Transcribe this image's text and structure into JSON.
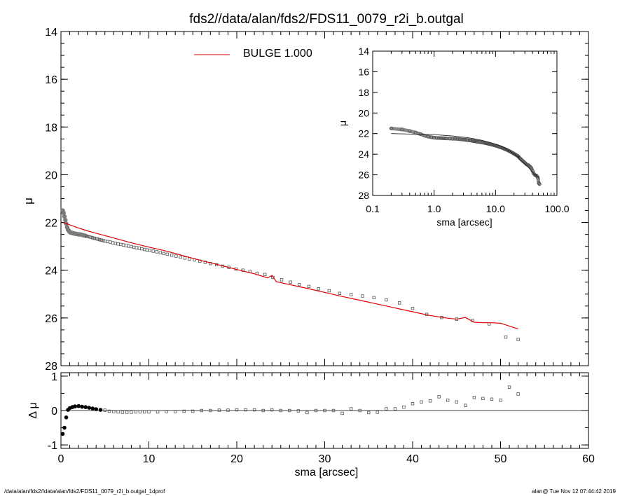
{
  "title": "fds2//data/alan/fds2/FDS11_0079_r2i_b.outgal",
  "footer_left": "/data/alan/fds2//data/alan/fds2/FDS11_0079_r2i_b.outgal_1dprof",
  "footer_right": "alan@  Tue Nov 12 07:44:42 2019",
  "colors": {
    "model": "#dd0000",
    "data": "#7a7a7a",
    "residual": "#000000"
  },
  "chart_data": [
    {
      "id": "main",
      "type": "scatter",
      "ylabel": "μ",
      "xlim": [
        0,
        60
      ],
      "ylim": [
        28,
        14
      ],
      "y_inverted": true,
      "xticks": [
        0,
        10,
        20,
        30,
        40,
        50,
        60
      ],
      "yticks": [
        14,
        16,
        18,
        20,
        22,
        24,
        26,
        28
      ],
      "legend": {
        "label": "BULGE  1.000",
        "placement": "top-center"
      },
      "series": [
        {
          "kind": "data",
          "x": [
            0.2,
            0.3,
            0.4,
            0.5,
            0.6,
            0.7,
            0.8,
            0.9,
            1.0,
            1.1,
            1.2,
            1.3,
            1.4,
            1.5,
            1.6,
            1.8,
            2.0,
            2.2,
            2.4,
            2.6,
            2.8,
            3.0,
            3.2,
            3.4,
            3.6,
            3.8,
            4.0,
            4.2,
            4.4,
            4.6,
            4.8,
            5.0,
            5.3,
            5.6,
            5.9,
            6.2,
            6.5,
            6.8,
            7.1,
            7.4,
            7.7,
            8.0,
            8.3,
            8.6,
            8.9,
            9.2,
            9.5,
            9.8,
            10.1,
            10.5,
            10.9,
            11.3,
            11.7,
            12.1,
            12.6,
            13.1,
            13.6,
            14.1,
            14.6,
            15.2,
            15.8,
            16.4,
            17.0,
            17.7,
            18.4,
            19.1,
            19.9,
            20.7,
            21.5,
            22.3,
            23.2,
            24.1,
            25.1,
            26.1,
            27.1,
            28.2,
            29.3,
            30.5,
            31.7,
            33.0,
            34.3,
            35.6,
            37.0,
            38.5,
            40.0,
            41.6,
            43.3,
            45.0,
            46.8,
            48.7,
            50.6,
            52.0
          ],
          "y": [
            21.5,
            21.6,
            21.75,
            21.9,
            22.05,
            22.2,
            22.3,
            22.35,
            22.4,
            22.42,
            22.43,
            22.44,
            22.45,
            22.46,
            22.47,
            22.48,
            22.5,
            22.5,
            22.52,
            22.54,
            22.56,
            22.58,
            22.6,
            22.62,
            22.64,
            22.66,
            22.68,
            22.7,
            22.72,
            22.74,
            22.76,
            22.78,
            22.8,
            22.82,
            22.85,
            22.87,
            22.9,
            22.92,
            22.94,
            22.97,
            22.99,
            23.01,
            23.04,
            23.06,
            23.08,
            23.1,
            23.13,
            23.15,
            23.17,
            23.2,
            23.23,
            23.27,
            23.3,
            23.33,
            23.37,
            23.41,
            23.45,
            23.49,
            23.53,
            23.57,
            23.62,
            23.67,
            23.72,
            23.77,
            23.83,
            23.88,
            23.95,
            24.0,
            24.06,
            24.13,
            24.18,
            24.3,
            24.4,
            24.5,
            24.6,
            24.68,
            24.78,
            24.86,
            24.97,
            25.02,
            25.08,
            25.15,
            25.24,
            25.37,
            25.6,
            25.85,
            25.98,
            26.05,
            26.1,
            26.25,
            26.8,
            26.9
          ]
        },
        {
          "kind": "model",
          "name": "BULGE  1.000",
          "x": [
            0.2,
            1,
            2,
            3,
            4,
            5,
            6,
            8,
            10,
            12,
            14,
            16,
            18,
            20,
            22,
            23.5,
            24,
            24.5,
            26,
            28,
            30,
            32,
            34,
            36,
            38,
            40,
            42,
            44,
            45,
            46,
            47,
            48,
            49,
            50,
            52
          ],
          "y": [
            22.0,
            22.1,
            22.23,
            22.35,
            22.45,
            22.55,
            22.65,
            22.85,
            23.03,
            23.2,
            23.4,
            23.6,
            23.78,
            23.97,
            24.15,
            24.32,
            24.22,
            24.48,
            24.6,
            24.76,
            24.93,
            25.1,
            25.26,
            25.42,
            25.58,
            25.74,
            25.9,
            26.01,
            26.05,
            25.98,
            26.18,
            26.2,
            26.2,
            26.22,
            26.46
          ]
        }
      ]
    },
    {
      "id": "residual",
      "type": "scatter",
      "xlabel": "sma [arcsec]",
      "ylabel": "Δ μ",
      "xlim": [
        0,
        60
      ],
      "ylim": [
        -1.1,
        1.1
      ],
      "xticks": [
        0,
        10,
        20,
        30,
        40,
        50,
        60
      ],
      "yticks": [
        -1,
        0,
        1
      ],
      "zero_line": true,
      "x": [
        0.2,
        0.4,
        0.6,
        0.8,
        1.0,
        1.3,
        1.6,
        2.0,
        2.4,
        2.8,
        3.2,
        3.6,
        4.0,
        4.5,
        5.0,
        5.5,
        6.0,
        6.5,
        7.0,
        7.5,
        8.0,
        8.5,
        9.0,
        9.5,
        10,
        11,
        12,
        13,
        14,
        15,
        16,
        17,
        18,
        19,
        20,
        21,
        22,
        23,
        24,
        25,
        26,
        27,
        28,
        29,
        30,
        31,
        32,
        33,
        34,
        35,
        36,
        37,
        38,
        39,
        40,
        41,
        42,
        43,
        44,
        45,
        46,
        47,
        48,
        49,
        50,
        51,
        52
      ],
      "y": [
        -0.68,
        -0.5,
        -0.2,
        0.02,
        0.07,
        0.1,
        0.12,
        0.13,
        0.11,
        0.1,
        0.08,
        0.06,
        0.04,
        0.02,
        0.01,
        -0.02,
        -0.03,
        -0.04,
        -0.05,
        -0.05,
        -0.05,
        -0.04,
        -0.04,
        -0.04,
        -0.04,
        -0.04,
        -0.03,
        -0.03,
        -0.02,
        -0.02,
        0.0,
        0.0,
        0.01,
        0.01,
        0.02,
        0.02,
        0.02,
        0.0,
        0.02,
        0.0,
        0.0,
        -0.01,
        -0.06,
        0.0,
        0.0,
        0.0,
        -0.08,
        0.05,
        0.0,
        -0.06,
        -0.05,
        0.05,
        0.05,
        0.1,
        0.2,
        0.25,
        0.28,
        0.4,
        0.3,
        0.25,
        0.15,
        0.38,
        0.35,
        0.33,
        0.3,
        0.68,
        0.48
      ]
    },
    {
      "id": "inset",
      "type": "scatter",
      "xlabel": "sma [arcsec]",
      "ylabel": "μ",
      "xscale": "log",
      "xlim": [
        0.1,
        100
      ],
      "ylim": [
        28,
        14
      ],
      "y_inverted": true,
      "xticks": [
        0.1,
        1.0,
        10.0,
        100.0
      ],
      "xticklabels": [
        "0.1",
        "1.0",
        "10.0",
        "100.0"
      ],
      "yticks": [
        14,
        16,
        18,
        20,
        22,
        24,
        26,
        28
      ]
    }
  ]
}
